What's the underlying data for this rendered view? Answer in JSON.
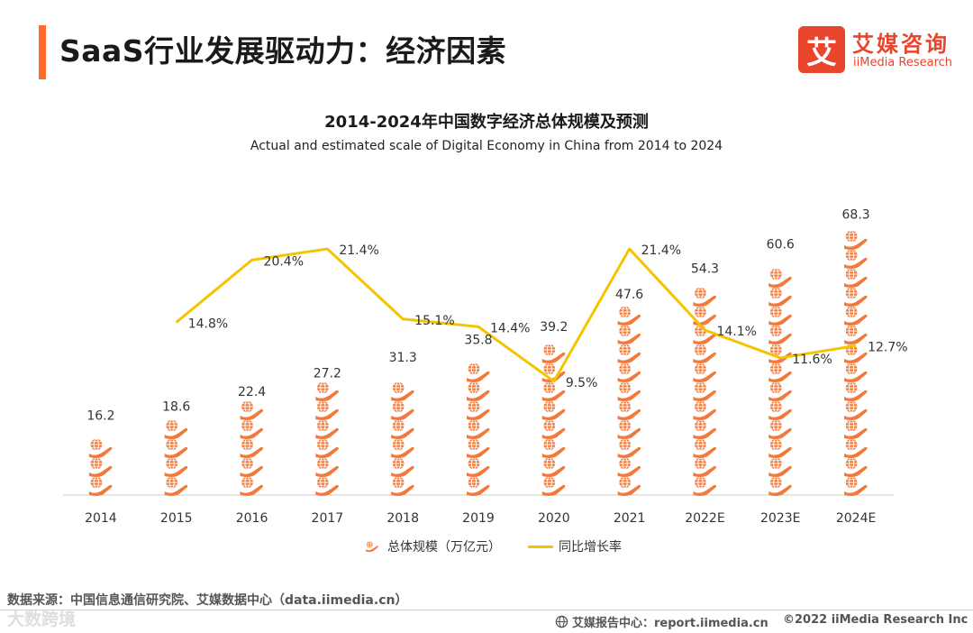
{
  "header": {
    "title": "SaaS行业发展驱动力：经济因素",
    "accent_color": "#ff6a2c"
  },
  "logo": {
    "mark": "艾",
    "name_cn": "艾媒咨询",
    "name_en": "iiMedia Research",
    "color": "#e8452c"
  },
  "chart_data": {
    "type": "bar",
    "title": "2014-2024年中国数字经济总体规模及预测",
    "subtitle": "Actual and estimated scale of Digital Economy in China  from 2014 to 2024",
    "categories": [
      "2014",
      "2015",
      "2016",
      "2017",
      "2018",
      "2019",
      "2020",
      "2021",
      "2022E",
      "2023E",
      "2024E"
    ],
    "series": [
      {
        "name": "总体规模（万亿元）",
        "type": "bar",
        "values": [
          16.2,
          18.6,
          22.4,
          27.2,
          31.3,
          35.8,
          39.2,
          47.6,
          54.3,
          60.6,
          68.3
        ],
        "value_labels": [
          "16.2",
          "18.6",
          "22.4",
          "27.2",
          "31.3",
          "35.8",
          "39.2",
          "47.6",
          "54.3",
          "60.6",
          "68.3"
        ],
        "color": "#f2793a",
        "icon": "hand-globe-icon"
      },
      {
        "name": "同比增长率",
        "type": "line",
        "values": [
          null,
          14.8,
          20.4,
          21.4,
          15.1,
          14.4,
          9.5,
          21.4,
          14.1,
          11.6,
          12.7
        ],
        "value_labels": [
          "",
          "14.8%",
          "20.4%",
          "21.4%",
          "15.1%",
          "14.4%",
          "9.5%",
          "21.4%",
          "14.1%",
          "11.6%",
          "12.7%"
        ],
        "color": "#f5c400"
      }
    ],
    "ylim": [
      0,
      70
    ],
    "y2lim": [
      0,
      24
    ],
    "grid": false,
    "legend_position": "bottom"
  },
  "source_text": "数据来源：中国信息通信研究院、艾媒数据中心（data.iimedia.cn）",
  "watermark_text": "大数跨境",
  "footer": {
    "report": "艾媒报告中心：report.iimedia.cn",
    "copyright": "©2022  iiMedia Research  Inc"
  }
}
